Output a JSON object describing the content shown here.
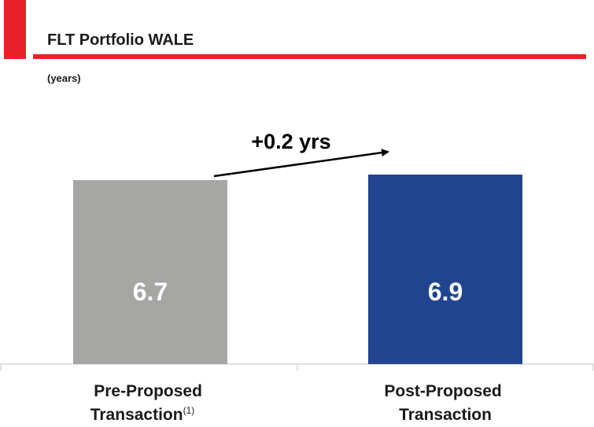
{
  "chart_data": {
    "type": "bar",
    "title": "FLT Portfolio WALE",
    "subtitle": "(years)",
    "categories": [
      "Pre-Proposed Transaction",
      "Post-Proposed Transaction"
    ],
    "category_superscripts": [
      "(1)",
      null
    ],
    "values": [
      6.7,
      6.9
    ],
    "colors": [
      "#a6a6a4",
      "#21448f"
    ],
    "annotation": "+0.2 yrs",
    "accent_color": "#e8202a"
  }
}
